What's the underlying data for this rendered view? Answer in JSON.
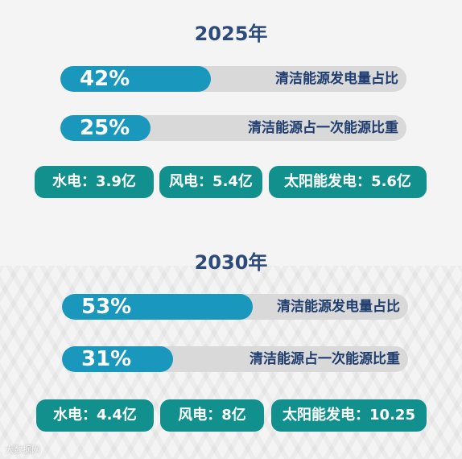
{
  "sections": [
    {
      "year": "2025年",
      "bars": [
        {
          "percent": "42%",
          "value": 0.42,
          "label": "清洁能源发电量占比"
        },
        {
          "percent": "25%",
          "value": 0.25,
          "label": "清洁能源占一次能源比重"
        }
      ],
      "pills": [
        "水电：3.9亿",
        "风电：5.4亿",
        "太阳能发电：5.6亿"
      ]
    },
    {
      "year": "2030年",
      "bars": [
        {
          "percent": "53%",
          "value": 0.53,
          "label": "清洁能源发电量占比"
        },
        {
          "percent": "31%",
          "value": 0.31,
          "label": "清洁能源占一次能源比重"
        }
      ],
      "pills": [
        "水电：4.4亿",
        "风电：8亿",
        "太阳能发电：10.25"
      ]
    }
  ],
  "watermark": "大数据网",
  "colors": {
    "bar_fill": "#1a97bd",
    "bar_track": "#d9d9d9",
    "pill": "#12908e",
    "title": "#2c4a7a"
  }
}
